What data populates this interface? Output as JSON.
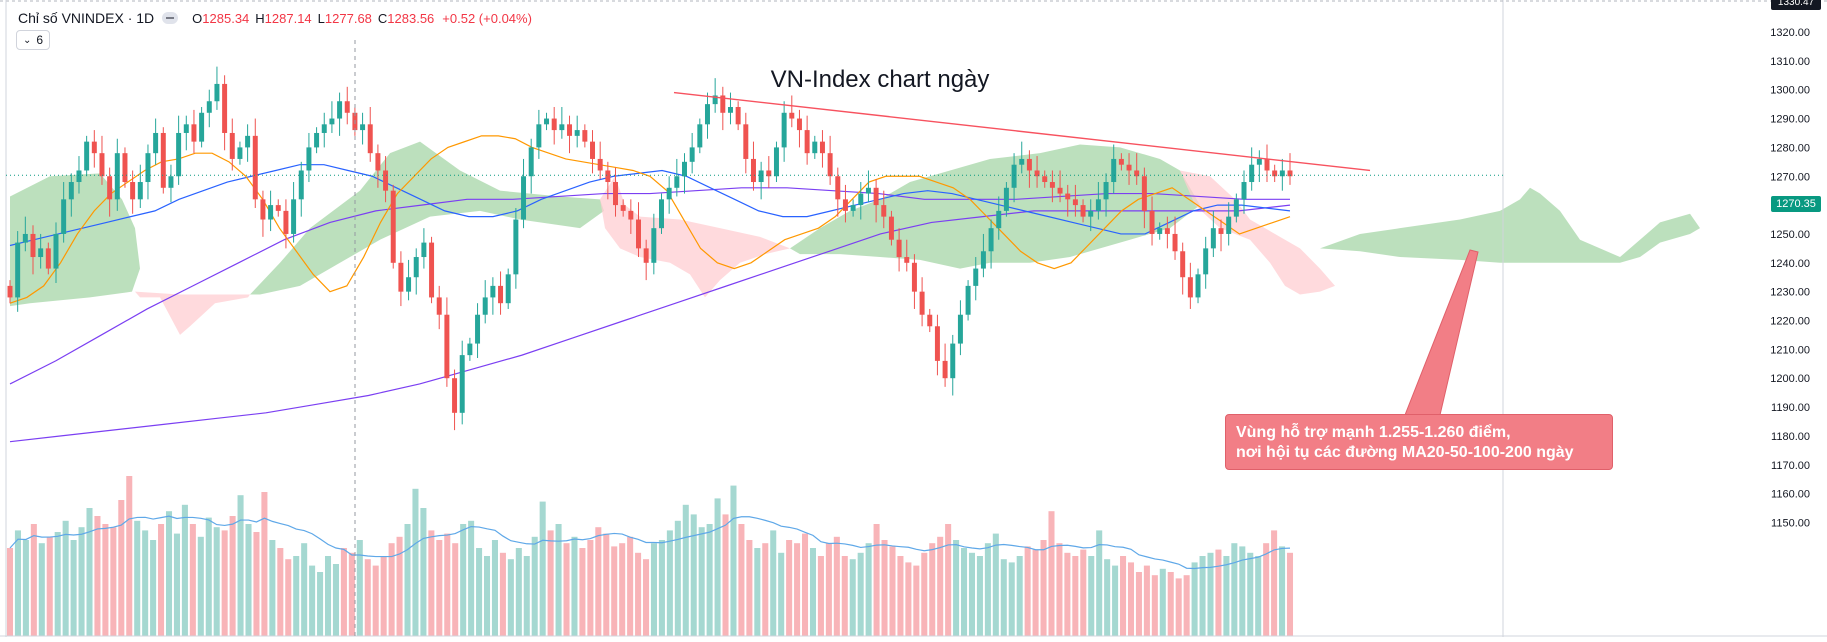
{
  "header": {
    "symbol": "Chỉ số VNINDEX · 1D",
    "open_label": "O",
    "open": "1285.34",
    "high_label": "H",
    "high": "1287.14",
    "low_label": "L",
    "low": "1277.68",
    "close_label": "C",
    "close": "1283.56",
    "change": "+0.52 (+0.04%)",
    "indicators_count": "6"
  },
  "title": "VN-Index chart ngày",
  "annotation": {
    "line1": "Vùng hỗ trợ mạnh 1.255-1.260 điểm,",
    "line2": "nơi hội tụ các đường MA20-50-100-200 ngày"
  },
  "last_price_label": "1270.35",
  "top_label": "1330.47",
  "colors": {
    "up": "#26a69a",
    "down": "#ef5350",
    "ma_fast": "#ff9800",
    "ma_mid": "#2962ff",
    "ma_slow": "#7b3ff2",
    "trendline": "#f7525f",
    "cloud_bull": "#a5d6a7",
    "cloud_bear": "#ffcdd2",
    "callout": "#f27e86"
  },
  "chart_data": {
    "type": "candlestick",
    "title": "VN-Index chart ngày",
    "y_ticks": [
      1150,
      1160,
      1170,
      1180,
      1190,
      1200,
      1210,
      1220,
      1230,
      1240,
      1250,
      1260,
      1270,
      1280,
      1290,
      1300,
      1310,
      1320
    ],
    "ylim": [
      1146,
      1335
    ],
    "last_price": 1270.35,
    "grid": false,
    "close_series": [
      1228,
      1247,
      1250,
      1242,
      1245,
      1238,
      1250,
      1262,
      1268,
      1272,
      1282,
      1278,
      1270,
      1262,
      1278,
      1268,
      1262,
      1268,
      1278,
      1285,
      1266,
      1270,
      1285,
      1288,
      1282,
      1292,
      1296,
      1302,
      1285,
      1276,
      1280,
      1284,
      1262,
      1255,
      1260,
      1258,
      1250,
      1262,
      1272,
      1280,
      1285,
      1288,
      1290,
      1296,
      1292,
      1286,
      1288,
      1278,
      1272,
      1265,
      1240,
      1230,
      1235,
      1242,
      1247,
      1228,
      1222,
      1200,
      1188,
      1208,
      1212,
      1222,
      1228,
      1232,
      1226,
      1236,
      1255,
      1270,
      1280,
      1288,
      1290,
      1286,
      1288,
      1284,
      1286,
      1282,
      1276,
      1272,
      1268,
      1260,
      1258,
      1255,
      1245,
      1240,
      1252,
      1262,
      1266,
      1270,
      1275,
      1280,
      1288,
      1295,
      1298,
      1292,
      1294,
      1288,
      1276,
      1268,
      1272,
      1270,
      1280,
      1292,
      1290,
      1286,
      1278,
      1282,
      1278,
      1270,
      1262,
      1258,
      1260,
      1264,
      1266,
      1260,
      1256,
      1248,
      1242,
      1240,
      1230,
      1222,
      1218,
      1206,
      1200,
      1212,
      1222,
      1232,
      1238,
      1244,
      1252,
      1258,
      1266,
      1274,
      1276,
      1272,
      1270,
      1268,
      1266,
      1264,
      1262,
      1260,
      1256,
      1258,
      1262,
      1268,
      1276,
      1274,
      1272,
      1270,
      1258,
      1250,
      1252,
      1250,
      1244,
      1235,
      1228,
      1236,
      1245,
      1252,
      1250,
      1256,
      1262,
      1268,
      1274,
      1276,
      1272,
      1270,
      1272,
      1270
    ],
    "ma20": [
      1226,
      1228,
      1232,
      1240,
      1250,
      1258,
      1264,
      1268,
      1272,
      1275,
      1276,
      1278,
      1278,
      1275,
      1270,
      1262,
      1252,
      1244,
      1236,
      1230,
      1232,
      1242,
      1254,
      1264,
      1270,
      1276,
      1280,
      1282,
      1284,
      1284,
      1283,
      1280,
      1278,
      1276,
      1275,
      1274,
      1273,
      1272,
      1270,
      1265,
      1255,
      1245,
      1240,
      1238,
      1240,
      1244,
      1248,
      1250,
      1252,
      1256,
      1262,
      1268,
      1270,
      1270,
      1270,
      1268,
      1266,
      1262,
      1256,
      1250,
      1244,
      1240,
      1238,
      1240,
      1246,
      1252,
      1258,
      1262,
      1264,
      1266,
      1262,
      1258,
      1254,
      1250,
      1252,
      1254,
      1256
    ],
    "ma50": [
      1246,
      1248,
      1250,
      1252,
      1254,
      1256,
      1258,
      1262,
      1265,
      1268,
      1270,
      1272,
      1274,
      1274,
      1272,
      1270,
      1266,
      1262,
      1258,
      1256,
      1256,
      1258,
      1262,
      1265,
      1268,
      1270,
      1271,
      1272,
      1270,
      1266,
      1262,
      1258,
      1256,
      1256,
      1258,
      1260,
      1262,
      1264,
      1265,
      1264,
      1262,
      1260,
      1258,
      1256,
      1254,
      1252,
      1250,
      1250,
      1254,
      1258,
      1260,
      1260,
      1259,
      1258
    ],
    "ma100": [
      1198,
      1206,
      1215,
      1224,
      1232,
      1240,
      1248,
      1254,
      1258,
      1260,
      1262,
      1262,
      1263,
      1264,
      1264,
      1265,
      1266,
      1266,
      1265,
      1264,
      1262,
      1262,
      1262,
      1263,
      1264,
      1264,
      1263,
      1262,
      1262
    ],
    "ma200": [
      1178,
      1180,
      1182,
      1184,
      1186,
      1188,
      1191,
      1194,
      1198,
      1203,
      1208,
      1214,
      1220,
      1226,
      1232,
      1238,
      1244,
      1250,
      1254,
      1256,
      1258,
      1258,
      1258,
      1258,
      1258,
      1260
    ],
    "trendline": [
      [
        674,
        1299
      ],
      [
        1370,
        1272
      ]
    ],
    "volume_relative": [
      0.55,
      0.66,
      0.6,
      0.7,
      0.58,
      0.62,
      0.65,
      0.72,
      0.6,
      0.68,
      0.8,
      0.75,
      0.7,
      0.68,
      0.85,
      1.0,
      0.72,
      0.66,
      0.6,
      0.7,
      0.78,
      0.64,
      0.82,
      0.7,
      0.62,
      0.74,
      0.68,
      0.66,
      0.75,
      0.88,
      0.7,
      0.65,
      0.9,
      0.6,
      0.55,
      0.48,
      0.5,
      0.58,
      0.44,
      0.4,
      0.5,
      0.45,
      0.55,
      0.52,
      0.6,
      0.48,
      0.44,
      0.5,
      0.58,
      0.62,
      0.7,
      0.92,
      0.8,
      0.66,
      0.6,
      0.64,
      0.58,
      0.7,
      0.72,
      0.55,
      0.5,
      0.6,
      0.52,
      0.48,
      0.55,
      0.5,
      0.62,
      0.84,
      0.66,
      0.7,
      0.58,
      0.62,
      0.55,
      0.6,
      0.68,
      0.64,
      0.56,
      0.58,
      0.62,
      0.52,
      0.48,
      0.58,
      0.6,
      0.66,
      0.72,
      0.82,
      0.76,
      0.68,
      0.7,
      0.86,
      0.76,
      0.94,
      0.7,
      0.6,
      0.55,
      0.58,
      0.66,
      0.52,
      0.6,
      0.58,
      0.64,
      0.55,
      0.5,
      0.58,
      0.62,
      0.5,
      0.48,
      0.52,
      0.58,
      0.7,
      0.6,
      0.56,
      0.5,
      0.46,
      0.44,
      0.52,
      0.58,
      0.62,
      0.7,
      0.6,
      0.55,
      0.52,
      0.5,
      0.58,
      0.64,
      0.48,
      0.46,
      0.5,
      0.56,
      0.54,
      0.6,
      0.78,
      0.58,
      0.52,
      0.5,
      0.54,
      0.5,
      0.66,
      0.48,
      0.44,
      0.5,
      0.46,
      0.4,
      0.44,
      0.38,
      0.42,
      0.4,
      0.36,
      0.38,
      0.46,
      0.5,
      0.52,
      0.54,
      0.5,
      0.58,
      0.56,
      0.52,
      0.5,
      0.58,
      0.66,
      0.56,
      0.52
    ]
  }
}
